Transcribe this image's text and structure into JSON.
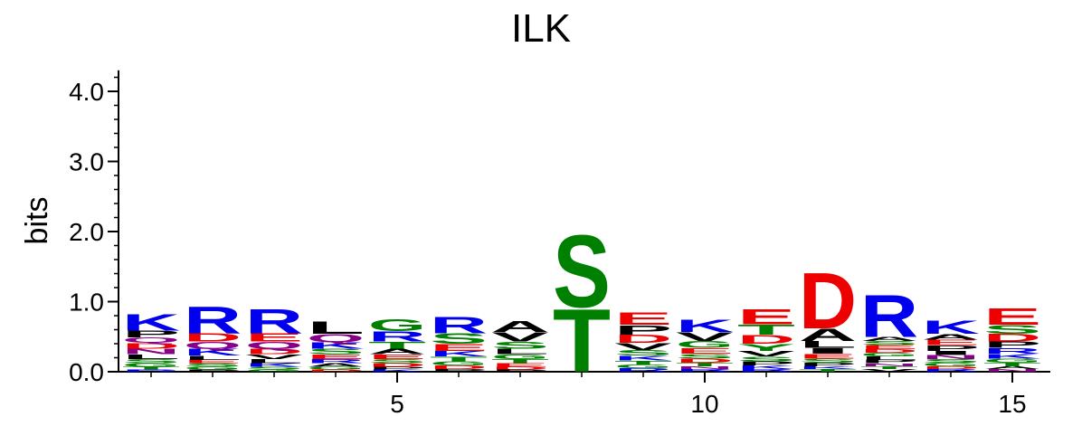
{
  "chart_data": {
    "type": "sequence-logo",
    "title": "ILK",
    "ylabel": "bits",
    "xlabel": "",
    "ylim": [
      0,
      4.3
    ],
    "y_ticks": [
      "0.0",
      "1.0",
      "2.0",
      "3.0",
      "4.0"
    ],
    "x_ticks": [
      "5",
      "10",
      "15"
    ],
    "positions": [
      {
        "pos": 1,
        "stack": [
          {
            "letter": "K",
            "height": 0.24,
            "color": "#0000ee"
          },
          {
            "letter": "P",
            "height": 0.1,
            "color": "#000000"
          },
          {
            "letter": "Q",
            "height": 0.08,
            "color": "#880088"
          },
          {
            "letter": "D",
            "height": 0.08,
            "color": "#ee0000"
          },
          {
            "letter": "N",
            "height": 0.08,
            "color": "#880088"
          },
          {
            "letter": "L",
            "height": 0.07,
            "color": "#000000"
          },
          {
            "letter": "S",
            "height": 0.06,
            "color": "#008000"
          },
          {
            "letter": "G",
            "height": 0.05,
            "color": "#008000"
          },
          {
            "letter": "T",
            "height": 0.04,
            "color": "#008000"
          },
          {
            "letter": "R",
            "height": 0.03,
            "color": "#0000ee"
          }
        ]
      },
      {
        "pos": 2,
        "stack": [
          {
            "letter": "R",
            "height": 0.4,
            "color": "#0000ee"
          },
          {
            "letter": "D",
            "height": 0.12,
            "color": "#ee0000"
          },
          {
            "letter": "Q",
            "height": 0.1,
            "color": "#880088"
          },
          {
            "letter": "K",
            "height": 0.1,
            "color": "#0000ee"
          },
          {
            "letter": "L",
            "height": 0.06,
            "color": "#000000"
          },
          {
            "letter": "E",
            "height": 0.05,
            "color": "#ee0000"
          },
          {
            "letter": "S",
            "height": 0.05,
            "color": "#008000"
          },
          {
            "letter": "G",
            "height": 0.04,
            "color": "#008000"
          },
          {
            "letter": "P",
            "height": 0.03,
            "color": "#000000"
          }
        ]
      },
      {
        "pos": 3,
        "stack": [
          {
            "letter": "R",
            "height": 0.36,
            "color": "#0000ee"
          },
          {
            "letter": "E",
            "height": 0.12,
            "color": "#ee0000"
          },
          {
            "letter": "Q",
            "height": 0.1,
            "color": "#880088"
          },
          {
            "letter": "D",
            "height": 0.08,
            "color": "#ee0000"
          },
          {
            "letter": "V",
            "height": 0.07,
            "color": "#000000"
          },
          {
            "letter": "L",
            "height": 0.06,
            "color": "#000000"
          },
          {
            "letter": "K",
            "height": 0.05,
            "color": "#0000ee"
          },
          {
            "letter": "S",
            "height": 0.04,
            "color": "#008000"
          },
          {
            "letter": "G",
            "height": 0.03,
            "color": "#008000"
          }
        ]
      },
      {
        "pos": 4,
        "stack": [
          {
            "letter": "L",
            "height": 0.18,
            "color": "#000000"
          },
          {
            "letter": "Q",
            "height": 0.12,
            "color": "#880088"
          },
          {
            "letter": "K",
            "height": 0.09,
            "color": "#0000ee"
          },
          {
            "letter": "S",
            "height": 0.08,
            "color": "#008000"
          },
          {
            "letter": "E",
            "height": 0.07,
            "color": "#ee0000"
          },
          {
            "letter": "R",
            "height": 0.06,
            "color": "#0000ee"
          },
          {
            "letter": "A",
            "height": 0.05,
            "color": "#000000"
          },
          {
            "letter": "G",
            "height": 0.04,
            "color": "#008000"
          },
          {
            "letter": "D",
            "height": 0.03,
            "color": "#ee0000"
          }
        ]
      },
      {
        "pos": 5,
        "stack": [
          {
            "letter": "G",
            "height": 0.17,
            "color": "#008000"
          },
          {
            "letter": "R",
            "height": 0.15,
            "color": "#0000ee"
          },
          {
            "letter": "T",
            "height": 0.1,
            "color": "#008000"
          },
          {
            "letter": "A",
            "height": 0.08,
            "color": "#000000"
          },
          {
            "letter": "E",
            "height": 0.07,
            "color": "#ee0000"
          },
          {
            "letter": "S",
            "height": 0.06,
            "color": "#008000"
          },
          {
            "letter": "D",
            "height": 0.05,
            "color": "#ee0000"
          },
          {
            "letter": "P",
            "height": 0.04,
            "color": "#000000"
          },
          {
            "letter": "K",
            "height": 0.03,
            "color": "#0000ee"
          }
        ]
      },
      {
        "pos": 6,
        "stack": [
          {
            "letter": "R",
            "height": 0.24,
            "color": "#0000ee"
          },
          {
            "letter": "S",
            "height": 0.15,
            "color": "#008000"
          },
          {
            "letter": "E",
            "height": 0.1,
            "color": "#ee0000"
          },
          {
            "letter": "K",
            "height": 0.08,
            "color": "#0000ee"
          },
          {
            "letter": "T",
            "height": 0.07,
            "color": "#008000"
          },
          {
            "letter": "G",
            "height": 0.06,
            "color": "#008000"
          },
          {
            "letter": "D",
            "height": 0.05,
            "color": "#ee0000"
          },
          {
            "letter": "P",
            "height": 0.04,
            "color": "#000000"
          }
        ]
      },
      {
        "pos": 7,
        "stack": [
          {
            "letter": "A",
            "height": 0.16,
            "color": "#000000"
          },
          {
            "letter": "V",
            "height": 0.14,
            "color": "#000000"
          },
          {
            "letter": "S",
            "height": 0.1,
            "color": "#008000"
          },
          {
            "letter": "L",
            "height": 0.08,
            "color": "#000000"
          },
          {
            "letter": "G",
            "height": 0.07,
            "color": "#008000"
          },
          {
            "letter": "T",
            "height": 0.06,
            "color": "#008000"
          },
          {
            "letter": "E",
            "height": 0.05,
            "color": "#ee0000"
          },
          {
            "letter": "D",
            "height": 0.04,
            "color": "#ee0000"
          },
          {
            "letter": "P",
            "height": 0.03,
            "color": "#000000"
          }
        ]
      },
      {
        "pos": 8,
        "stack": [
          {
            "letter": "S",
            "height": 1.06,
            "color": "#008000"
          },
          {
            "letter": "T",
            "height": 0.92,
            "color": "#008000"
          }
        ]
      },
      {
        "pos": 9,
        "stack": [
          {
            "letter": "E",
            "height": 0.18,
            "color": "#ee0000"
          },
          {
            "letter": "P",
            "height": 0.14,
            "color": "#000000"
          },
          {
            "letter": "D",
            "height": 0.12,
            "color": "#ee0000"
          },
          {
            "letter": "V",
            "height": 0.1,
            "color": "#000000"
          },
          {
            "letter": "S",
            "height": 0.08,
            "color": "#008000"
          },
          {
            "letter": "K",
            "height": 0.07,
            "color": "#0000ee"
          },
          {
            "letter": "T",
            "height": 0.06,
            "color": "#008000"
          },
          {
            "letter": "G",
            "height": 0.05,
            "color": "#008000"
          },
          {
            "letter": "R",
            "height": 0.05,
            "color": "#0000ee"
          }
        ]
      },
      {
        "pos": 10,
        "stack": [
          {
            "letter": "K",
            "height": 0.18,
            "color": "#0000ee"
          },
          {
            "letter": "V",
            "height": 0.13,
            "color": "#000000"
          },
          {
            "letter": "G",
            "height": 0.1,
            "color": "#008000"
          },
          {
            "letter": "E",
            "height": 0.08,
            "color": "#ee0000"
          },
          {
            "letter": "S",
            "height": 0.07,
            "color": "#008000"
          },
          {
            "letter": "D",
            "height": 0.06,
            "color": "#ee0000"
          },
          {
            "letter": "T",
            "height": 0.05,
            "color": "#008000"
          },
          {
            "letter": "N",
            "height": 0.04,
            "color": "#880088"
          },
          {
            "letter": "R",
            "height": 0.04,
            "color": "#0000ee"
          }
        ]
      },
      {
        "pos": 11,
        "stack": [
          {
            "letter": "E",
            "height": 0.22,
            "color": "#ee0000"
          },
          {
            "letter": "T",
            "height": 0.15,
            "color": "#008000"
          },
          {
            "letter": "D",
            "height": 0.13,
            "color": "#ee0000"
          },
          {
            "letter": "Y",
            "height": 0.1,
            "color": "#008000"
          },
          {
            "letter": "V",
            "height": 0.08,
            "color": "#000000"
          },
          {
            "letter": "S",
            "height": 0.07,
            "color": "#008000"
          },
          {
            "letter": "P",
            "height": 0.06,
            "color": "#000000"
          },
          {
            "letter": "K",
            "height": 0.05,
            "color": "#0000ee"
          },
          {
            "letter": "R",
            "height": 0.04,
            "color": "#0000ee"
          }
        ]
      },
      {
        "pos": 12,
        "stack": [
          {
            "letter": "D",
            "height": 0.82,
            "color": "#ee0000"
          },
          {
            "letter": "A",
            "height": 0.18,
            "color": "#000000"
          },
          {
            "letter": "L",
            "height": 0.1,
            "color": "#000000"
          },
          {
            "letter": "I",
            "height": 0.08,
            "color": "#000000"
          },
          {
            "letter": "E",
            "height": 0.07,
            "color": "#ee0000"
          },
          {
            "letter": "S",
            "height": 0.06,
            "color": "#008000"
          },
          {
            "letter": "P",
            "height": 0.05,
            "color": "#000000"
          },
          {
            "letter": "K",
            "height": 0.04,
            "color": "#0000ee"
          },
          {
            "letter": "T",
            "height": 0.04,
            "color": "#008000"
          }
        ]
      },
      {
        "pos": 13,
        "stack": [
          {
            "letter": "R",
            "height": 0.62,
            "color": "#0000ee"
          },
          {
            "letter": "A",
            "height": 0.06,
            "color": "#000000"
          },
          {
            "letter": "S",
            "height": 0.06,
            "color": "#008000"
          },
          {
            "letter": "E",
            "height": 0.06,
            "color": "#ee0000"
          },
          {
            "letter": "D",
            "height": 0.05,
            "color": "#ee0000"
          },
          {
            "letter": "G",
            "height": 0.05,
            "color": "#008000"
          },
          {
            "letter": "L",
            "height": 0.05,
            "color": "#000000"
          },
          {
            "letter": "P",
            "height": 0.05,
            "color": "#000000"
          },
          {
            "letter": "N",
            "height": 0.04,
            "color": "#880088"
          },
          {
            "letter": "T",
            "height": 0.04,
            "color": "#008000"
          },
          {
            "letter": "V",
            "height": 0.04,
            "color": "#000000"
          }
        ]
      },
      {
        "pos": 14,
        "stack": [
          {
            "letter": "K",
            "height": 0.2,
            "color": "#0000ee"
          },
          {
            "letter": "A",
            "height": 0.08,
            "color": "#000000"
          },
          {
            "letter": "E",
            "height": 0.08,
            "color": "#ee0000"
          },
          {
            "letter": "P",
            "height": 0.08,
            "color": "#000000"
          },
          {
            "letter": "I",
            "height": 0.06,
            "color": "#000000"
          },
          {
            "letter": "N",
            "height": 0.06,
            "color": "#880088"
          },
          {
            "letter": "S",
            "height": 0.05,
            "color": "#008000"
          },
          {
            "letter": "G",
            "height": 0.05,
            "color": "#008000"
          },
          {
            "letter": "D",
            "height": 0.04,
            "color": "#ee0000"
          },
          {
            "letter": "R",
            "height": 0.04,
            "color": "#0000ee"
          }
        ]
      },
      {
        "pos": 15,
        "stack": [
          {
            "letter": "E",
            "height": 0.24,
            "color": "#ee0000"
          },
          {
            "letter": "S",
            "height": 0.13,
            "color": "#008000"
          },
          {
            "letter": "D",
            "height": 0.11,
            "color": "#ee0000"
          },
          {
            "letter": "P",
            "height": 0.09,
            "color": "#000000"
          },
          {
            "letter": "R",
            "height": 0.08,
            "color": "#0000ee"
          },
          {
            "letter": "K",
            "height": 0.07,
            "color": "#0000ee"
          },
          {
            "letter": "G",
            "height": 0.06,
            "color": "#008000"
          },
          {
            "letter": "T",
            "height": 0.05,
            "color": "#008000"
          },
          {
            "letter": "A",
            "height": 0.04,
            "color": "#000000"
          },
          {
            "letter": "N",
            "height": 0.04,
            "color": "#880088"
          }
        ]
      }
    ]
  }
}
